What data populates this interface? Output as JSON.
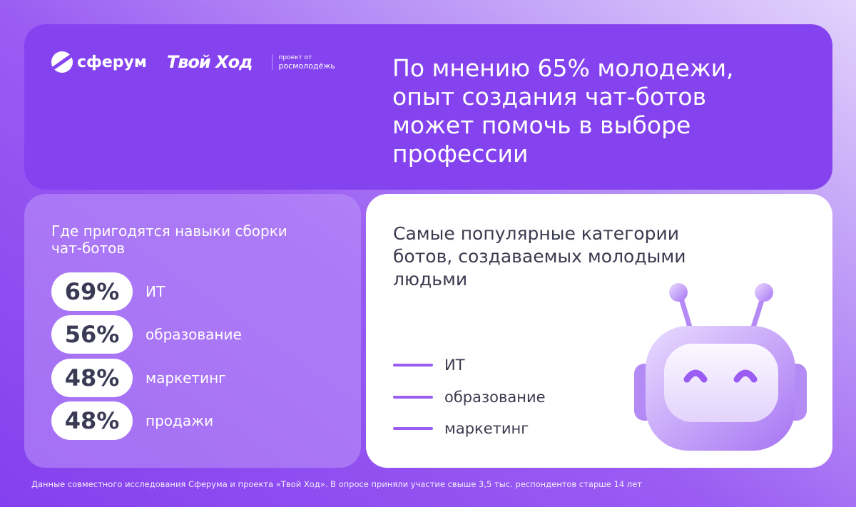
{
  "header": {
    "logo_sferum": "сферум",
    "logo_tvoy_hod": "Твой Ход",
    "logo_rosm_small": "проект от",
    "logo_rosm": "росмолодёжь",
    "headline": "По мнению 65% молодежи, опыт создания чат-ботов может помочь в выборе профессии"
  },
  "skills": {
    "title": "Где пригодятся навыки сборки чат-ботов",
    "items": [
      {
        "value": "69%",
        "label": "ИТ"
      },
      {
        "value": "56%",
        "label": "образование"
      },
      {
        "value": "48%",
        "label": "маркетинг"
      },
      {
        "value": "48%",
        "label": "продажи"
      }
    ]
  },
  "categories": {
    "title": "Самые популярные категории ботов, создаваемых молодыми людьми",
    "items": [
      "ИТ",
      "образование",
      "маркетинг"
    ],
    "accent": "#9a5cf2",
    "icon": "robot-icon"
  },
  "footer": "Данные совместного исследования Сферума и проекта «Твой Ход». В опросе приняли участие свыше 3,5 тыс. респондентов старше 14 лет"
}
